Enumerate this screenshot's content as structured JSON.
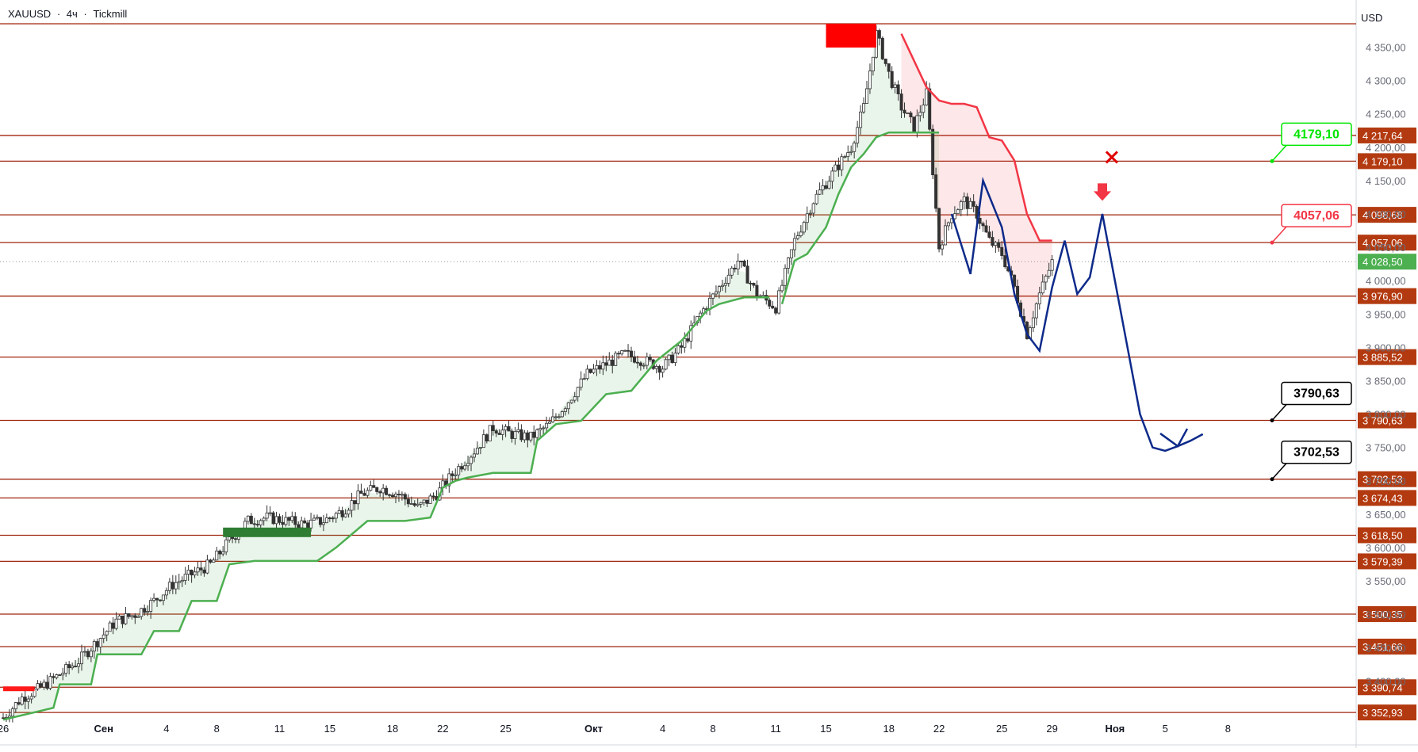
{
  "header": {
    "symbol": "XAUUSD",
    "separator": "·",
    "timeframe": "4ч",
    "broker": "Tickmill"
  },
  "currency_label": "USD",
  "colors": {
    "level_line": "#a0260f",
    "level_label_bg": "#b33a10",
    "bull_candle": "#26a69a",
    "bear_candle": "#ef5350",
    "trail_support": "#4caf50",
    "trail_resistance": "#f23645",
    "forecast_path": "#0d2a8a",
    "current_price_bg": "#4caf50"
  },
  "chart_data": {
    "type": "line",
    "title": "",
    "ylim": [
      3340,
      4385
    ],
    "y_ticks": [
      "3 400,00",
      "3 450,00",
      "3 500,00",
      "3 550,00",
      "3 600,00",
      "3 650,00",
      "3 700,00",
      "3 750,00",
      "3 800,00",
      "3 850,00",
      "3 900,00",
      "3 950,00",
      "4 000,00",
      "4 050,00",
      "4 100,00",
      "4 150,00",
      "4 200,00",
      "4 250,00",
      "4 300,00",
      "4 350,00"
    ],
    "y_tick_values": [
      3400,
      3450,
      3500,
      3550,
      3600,
      3650,
      3700,
      3750,
      3800,
      3850,
      3900,
      3950,
      4000,
      4050,
      4100,
      4150,
      4200,
      4250,
      4300,
      4350
    ],
    "x_ticks": [
      {
        "label": "26",
        "t": 0
      },
      {
        "label": "Сен",
        "t": 16
      },
      {
        "label": "4",
        "t": 26
      },
      {
        "label": "8",
        "t": 34
      },
      {
        "label": "11",
        "t": 44
      },
      {
        "label": "15",
        "t": 52
      },
      {
        "label": "18",
        "t": 62
      },
      {
        "label": "22",
        "t": 70
      },
      {
        "label": "25",
        "t": 80
      },
      {
        "label": "Окт",
        "t": 94
      },
      {
        "label": "4",
        "t": 105
      },
      {
        "label": "8",
        "t": 113
      },
      {
        "label": "11",
        "t": 123
      },
      {
        "label": "15",
        "t": 131
      },
      {
        "label": "18",
        "t": 141
      },
      {
        "label": "22",
        "t": 149
      },
      {
        "label": "25",
        "t": 159
      },
      {
        "label": "29",
        "t": 167
      },
      {
        "label": "Ноя",
        "t": 177
      },
      {
        "label": "5",
        "t": 185
      },
      {
        "label": "8",
        "t": 195
      }
    ],
    "levels": [
      {
        "value": 4385.0,
        "label": ""
      },
      {
        "value": 4217.64,
        "label": "4 217,64"
      },
      {
        "value": 4179.1,
        "label": "4 179,10"
      },
      {
        "value": 4098.68,
        "label": "4 098,68"
      },
      {
        "value": 4057.06,
        "label": "4 057,06"
      },
      {
        "value": 3976.9,
        "label": "3 976,90"
      },
      {
        "value": 3885.52,
        "label": "3 885,52"
      },
      {
        "value": 3790.63,
        "label": "3 790,63"
      },
      {
        "value": 3702.53,
        "label": "3 702,53"
      },
      {
        "value": 3674.43,
        "label": "3 674,43"
      },
      {
        "value": 3618.5,
        "label": "3 618,50"
      },
      {
        "value": 3579.39,
        "label": "3 579,39"
      },
      {
        "value": 3500.35,
        "label": "3 500,35"
      },
      {
        "value": 3451.66,
        "label": "3 451,66"
      },
      {
        "value": 3390.74,
        "label": "3 390,74"
      },
      {
        "value": 3352.93,
        "label": "3 352,93"
      }
    ],
    "current_price": {
      "value": 4028.5,
      "label": "4 028,50"
    },
    "price_path": {
      "t": [
        0,
        3,
        6,
        9,
        12,
        15,
        18,
        21,
        24,
        27,
        30,
        33,
        36,
        39,
        42,
        45,
        48,
        51,
        54,
        57,
        60,
        63,
        66,
        69,
        72,
        75,
        78,
        81,
        84,
        87,
        90,
        93,
        96,
        99,
        102,
        105,
        108,
        111,
        114,
        117,
        120,
        123,
        126,
        129,
        132,
        135,
        137,
        139,
        141,
        143,
        145,
        147,
        149,
        151,
        153,
        155,
        157,
        159,
        161,
        163,
        165,
        167
      ],
      "y": [
        3345,
        3375,
        3390,
        3410,
        3430,
        3460,
        3490,
        3500,
        3520,
        3545,
        3560,
        3575,
        3610,
        3640,
        3645,
        3640,
        3635,
        3640,
        3655,
        3680,
        3690,
        3680,
        3660,
        3680,
        3715,
        3745,
        3780,
        3770,
        3765,
        3785,
        3820,
        3860,
        3875,
        3890,
        3880,
        3870,
        3900,
        3950,
        3990,
        4030,
        3980,
        3960,
        4060,
        4120,
        4160,
        4200,
        4260,
        4370,
        4310,
        4260,
        4230,
        4280,
        4050,
        4100,
        4120,
        4100,
        4060,
        4040,
        3990,
        3920,
        3980,
        4028
      ]
    },
    "candle_period": 0.5,
    "support_trail": {
      "t": [
        0,
        8,
        9,
        14,
        15,
        22,
        24,
        28,
        30,
        34,
        36,
        40,
        44,
        50,
        53,
        58,
        64,
        68,
        70,
        72,
        74,
        78,
        84,
        85,
        88,
        92,
        96,
        100,
        104,
        108,
        112,
        114,
        116,
        118,
        120,
        122
      ],
      "y": [
        3342,
        3360,
        3395,
        3395,
        3440,
        3440,
        3475,
        3475,
        3520,
        3520,
        3575,
        3580,
        3580,
        3580,
        3600,
        3640,
        3640,
        3645,
        3690,
        3700,
        3705,
        3712,
        3712,
        3760,
        3785,
        3790,
        3830,
        3835,
        3880,
        3910,
        3955,
        3965,
        3970,
        3975,
        3975,
        3975
      ]
    },
    "support_trail_2": {
      "t": [
        124,
        126,
        128,
        131,
        133,
        135,
        137,
        139,
        141,
        143,
        145,
        147,
        149
      ],
      "y": [
        3965,
        4030,
        4040,
        4080,
        4130,
        4170,
        4190,
        4215,
        4222,
        4222,
        4222,
        4222,
        4222
      ]
    },
    "resistance_trail": {
      "t": [
        143,
        145,
        147,
        149,
        151,
        153,
        155,
        157,
        159,
        161,
        163,
        165,
        167
      ],
      "y": [
        4370,
        4330,
        4290,
        4270,
        4265,
        4265,
        4260,
        4215,
        4210,
        4180,
        4100,
        4060,
        4060
      ]
    },
    "forecast_path": {
      "t": [
        151,
        154,
        156,
        159,
        161,
        163,
        165,
        167,
        169,
        171,
        173,
        175,
        177,
        179,
        181,
        183,
        185,
        187,
        189,
        191
      ],
      "y": [
        4100,
        4010,
        4150,
        4080,
        3980,
        3920,
        3895,
        3990,
        4060,
        3980,
        4005,
        4100,
        4000,
        3900,
        3800,
        3750,
        3745,
        3752,
        3760,
        3770
      ]
    },
    "forecast_targets": [
      {
        "label": "4179,10",
        "kind": "cancel",
        "color": "#00e600"
      },
      {
        "label": "4057,06",
        "kind": "sell",
        "color": "#f23645"
      },
      {
        "label": "3790,63",
        "kind": "target",
        "color": "#000000"
      },
      {
        "label": "3702,53",
        "kind": "target",
        "color": "#000000"
      }
    ]
  }
}
